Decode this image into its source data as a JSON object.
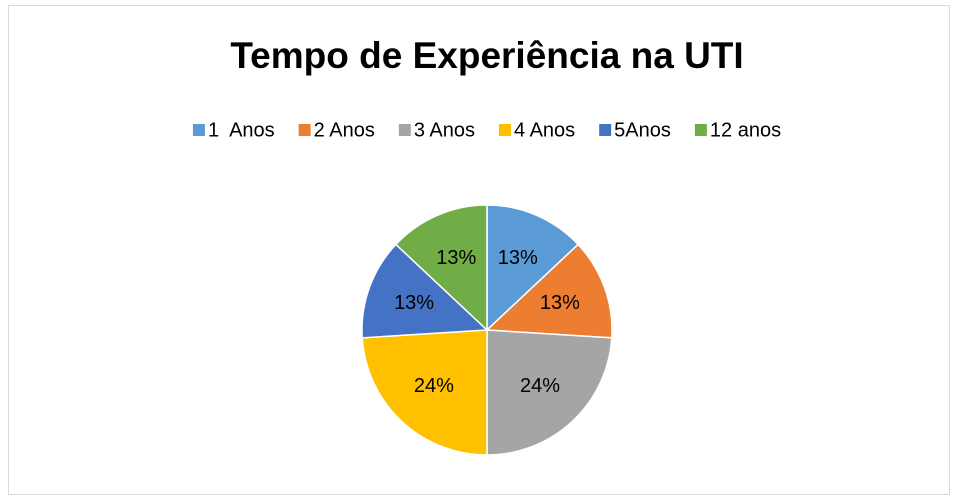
{
  "chart_data": {
    "type": "pie",
    "title": "Tempo de Experiência na UTI",
    "categories": [
      "1  Anos",
      "2 Anos",
      "3 Anos",
      "4 Anos",
      "5Anos",
      "12 anos"
    ],
    "values": [
      13,
      13,
      24,
      24,
      13,
      13
    ],
    "value_labels": [
      "13%",
      "13%",
      "24%",
      "24%",
      "13%",
      "13%"
    ],
    "colors": [
      "#5b9bd5",
      "#ed7d31",
      "#a5a5a5",
      "#ffc000",
      "#4472c4",
      "#70ad47"
    ],
    "legend": "top"
  }
}
